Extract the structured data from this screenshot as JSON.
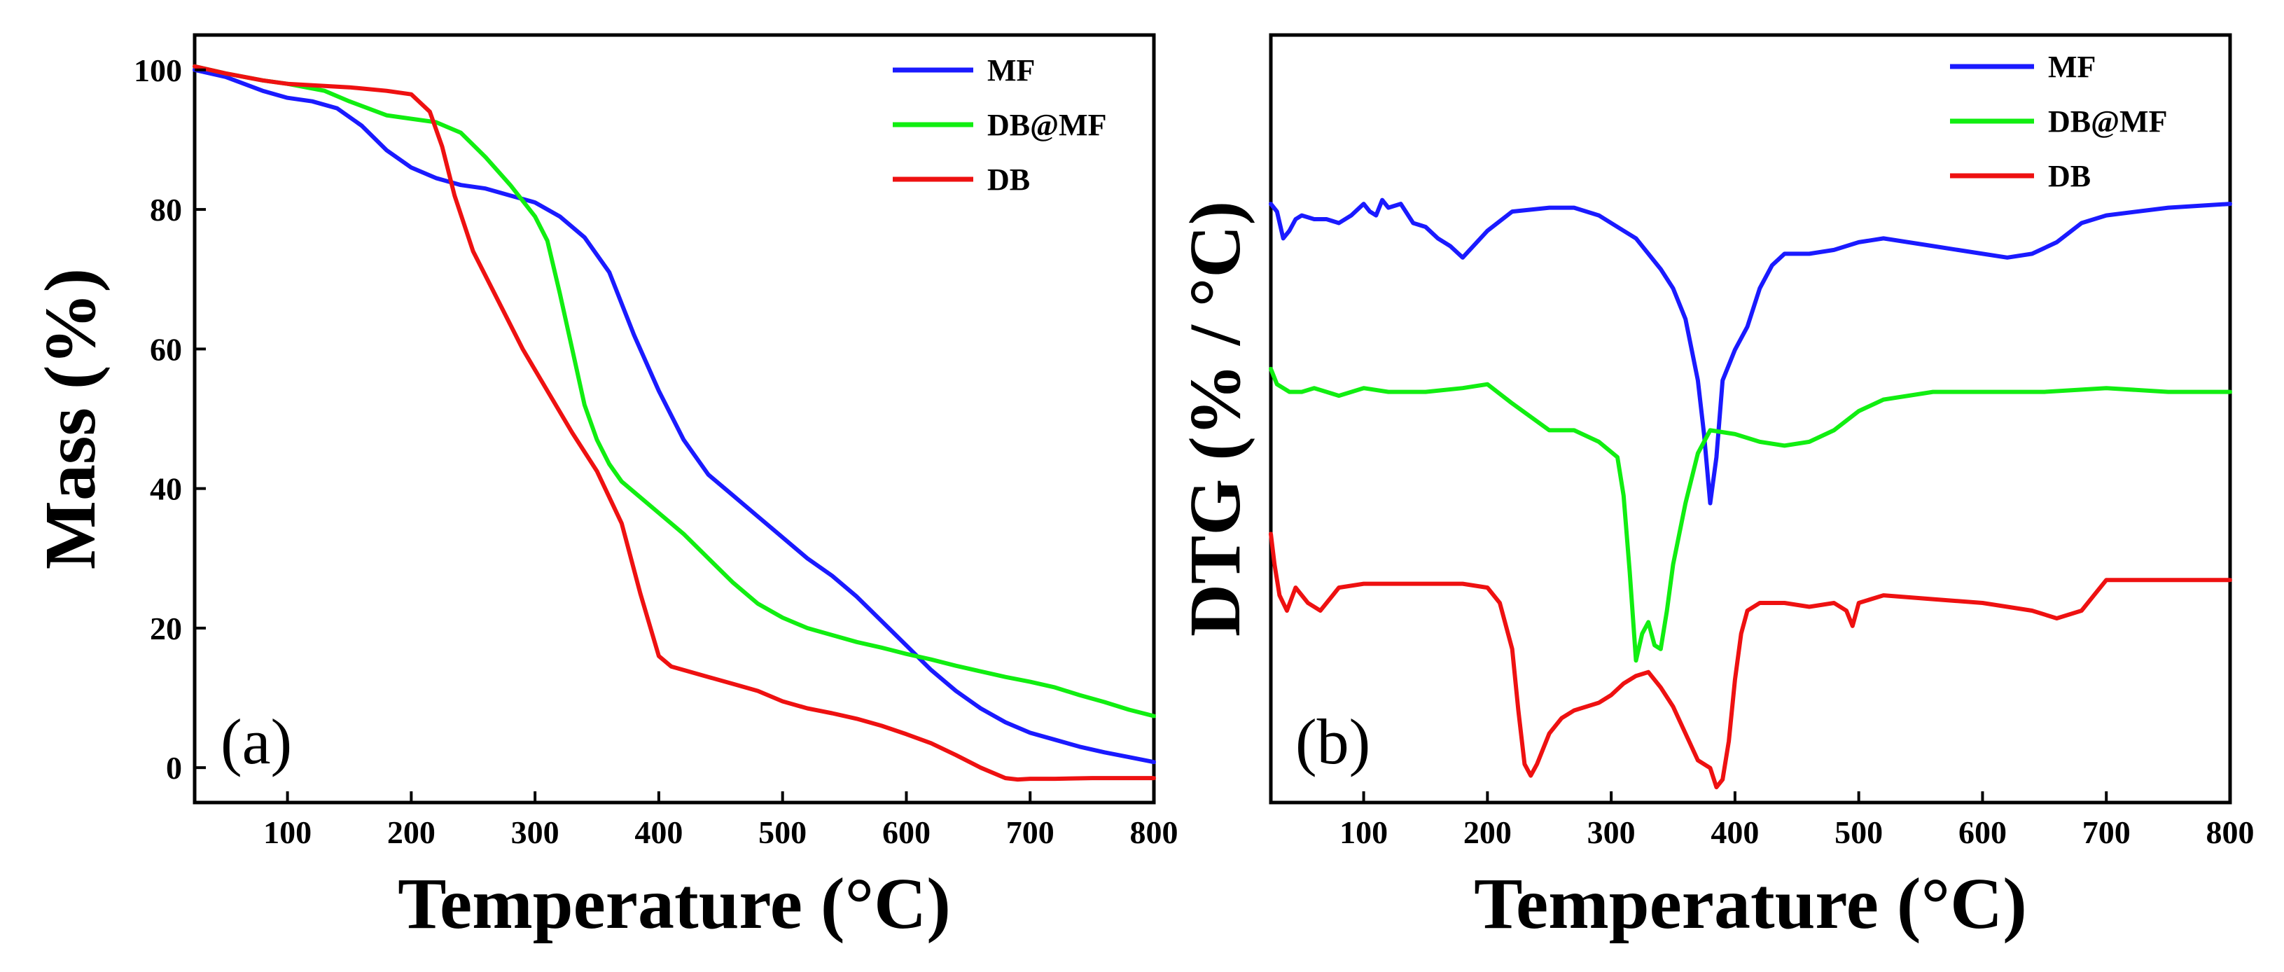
{
  "chart_data": [
    {
      "type": "line",
      "panel_label": "(a)",
      "xlabel": "Temperature (°C)",
      "ylabel": "Mass (%)",
      "xlim": [
        25,
        800
      ],
      "ylim": [
        -5,
        105
      ],
      "xticks": [
        100,
        200,
        300,
        400,
        500,
        600,
        700,
        800
      ],
      "yticks": [
        0,
        20,
        40,
        60,
        80,
        100
      ],
      "legend_position": "top-right",
      "series": [
        {
          "name": "MF",
          "color": "#1a1aff",
          "x": [
            25,
            50,
            80,
            100,
            120,
            140,
            160,
            180,
            200,
            220,
            240,
            260,
            280,
            300,
            320,
            340,
            360,
            380,
            400,
            420,
            440,
            460,
            480,
            500,
            520,
            540,
            560,
            580,
            600,
            620,
            640,
            660,
            680,
            700,
            720,
            740,
            760,
            780,
            800
          ],
          "y": [
            100,
            99,
            97,
            96,
            95.5,
            94.5,
            92,
            88.5,
            86,
            84.5,
            83.5,
            83,
            82,
            81,
            79,
            76,
            71,
            62,
            54,
            47,
            42,
            39,
            36,
            33,
            30,
            27.5,
            24.5,
            21,
            17.5,
            14,
            11,
            8.5,
            6.5,
            5,
            4,
            3,
            2.2,
            1.5,
            0.8
          ]
        },
        {
          "name": "DB@MF",
          "color": "#11ee11",
          "x": [
            25,
            50,
            80,
            100,
            130,
            150,
            180,
            200,
            220,
            240,
            260,
            280,
            300,
            310,
            320,
            330,
            340,
            350,
            360,
            370,
            380,
            400,
            420,
            440,
            460,
            480,
            500,
            520,
            540,
            560,
            580,
            600,
            620,
            640,
            660,
            680,
            700,
            720,
            740,
            760,
            780,
            800
          ],
          "y": [
            100.5,
            99.5,
            98.5,
            98,
            97,
            95.5,
            93.5,
            93,
            92.5,
            91,
            87.5,
            83.5,
            79,
            75.5,
            68,
            60,
            52,
            47,
            43.5,
            41,
            39.5,
            36.5,
            33.5,
            30,
            26.5,
            23.5,
            21.5,
            20,
            19,
            18,
            17.2,
            16.3,
            15.5,
            14.6,
            13.8,
            13,
            12.3,
            11.5,
            10.4,
            9.4,
            8.3,
            7.4
          ]
        },
        {
          "name": "DB",
          "color": "#ee1111",
          "x": [
            25,
            50,
            80,
            100,
            150,
            180,
            200,
            215,
            225,
            235,
            250,
            270,
            290,
            310,
            330,
            350,
            370,
            385,
            400,
            410,
            420,
            440,
            460,
            480,
            500,
            520,
            540,
            560,
            580,
            600,
            620,
            640,
            660,
            680,
            690,
            700,
            720,
            750,
            800
          ],
          "y": [
            100.5,
            99.5,
            98.5,
            98,
            97.5,
            97,
            96.5,
            94,
            89,
            82,
            74,
            67,
            60,
            54,
            48,
            42.5,
            35,
            25,
            16,
            14.5,
            14,
            13,
            12,
            11,
            9.5,
            8.5,
            7.8,
            7,
            6,
            4.8,
            3.5,
            1.8,
            0,
            -1.5,
            -1.7,
            -1.6,
            -1.6,
            -1.5,
            -1.5
          ]
        }
      ]
    },
    {
      "type": "line",
      "panel_label": "(b)",
      "xlabel": "Temperature (°C)",
      "ylabel": "DTG (% / °C)",
      "xlim": [
        25,
        800
      ],
      "ylim": [
        0,
        100
      ],
      "xticks": [
        100,
        200,
        300,
        400,
        500,
        600,
        700,
        800
      ],
      "yticks": [],
      "legend_position": "top-right",
      "series": [
        {
          "name": "MF",
          "color": "#1a1aff",
          "x": [
            25,
            30,
            35,
            40,
            45,
            50,
            60,
            70,
            80,
            90,
            100,
            105,
            110,
            115,
            120,
            130,
            140,
            150,
            160,
            170,
            180,
            200,
            220,
            250,
            270,
            290,
            310,
            320,
            330,
            340,
            350,
            360,
            370,
            375,
            380,
            385,
            390,
            400,
            410,
            420,
            430,
            440,
            460,
            480,
            500,
            520,
            560,
            600,
            620,
            640,
            660,
            680,
            700,
            750,
            800
          ],
          "y": [
            78,
            77,
            73.5,
            74.5,
            76,
            76.5,
            76,
            76,
            75.5,
            76.5,
            78,
            77,
            76.5,
            78.5,
            77.5,
            78,
            75.5,
            75,
            73.5,
            72.5,
            71,
            74.5,
            77,
            77.5,
            77.5,
            76.5,
            74.5,
            73.5,
            71.5,
            69.5,
            67,
            63,
            55,
            48,
            39,
            45,
            55,
            59,
            62,
            67,
            70,
            71.5,
            71.5,
            72,
            73,
            73.5,
            72.5,
            71.5,
            71,
            71.5,
            73,
            75.5,
            76.5,
            77.5,
            78
          ]
        },
        {
          "name": "DB@MF",
          "color": "#11ee11",
          "x": [
            25,
            30,
            40,
            50,
            60,
            70,
            80,
            100,
            120,
            150,
            180,
            200,
            220,
            250,
            270,
            290,
            305,
            310,
            315,
            320,
            325,
            330,
            335,
            340,
            345,
            350,
            360,
            370,
            380,
            400,
            420,
            440,
            460,
            480,
            500,
            520,
            560,
            600,
            650,
            700,
            750,
            800
          ],
          "y": [
            56.5,
            54.5,
            53.5,
            53.5,
            54,
            53.5,
            53,
            54,
            53.5,
            53.5,
            54,
            54.5,
            52,
            48.5,
            48.5,
            47,
            45,
            40,
            30,
            18.5,
            22,
            23.5,
            20.5,
            20,
            25,
            31,
            39,
            45.5,
            48.5,
            48,
            47,
            46.5,
            47,
            48.5,
            51,
            52.5,
            53.5,
            53.5,
            53.5,
            54,
            53.5,
            53.5
          ]
        },
        {
          "name": "DB",
          "color": "#ee1111",
          "x": [
            25,
            28,
            32,
            38,
            45,
            55,
            65,
            75,
            80,
            100,
            150,
            180,
            200,
            210,
            220,
            225,
            230,
            235,
            240,
            245,
            250,
            260,
            270,
            280,
            290,
            300,
            310,
            320,
            330,
            340,
            350,
            360,
            370,
            380,
            385,
            390,
            395,
            400,
            405,
            410,
            420,
            440,
            460,
            480,
            490,
            495,
            500,
            520,
            560,
            600,
            640,
            660,
            670,
            680,
            690,
            700,
            750,
            800
          ],
          "y": [
            35,
            31,
            27,
            25,
            28,
            26,
            25,
            27,
            28,
            28.5,
            28.5,
            28.5,
            28,
            26,
            20,
            12,
            5,
            3.5,
            5,
            7,
            9,
            11,
            12,
            12.5,
            13,
            14,
            15.5,
            16.5,
            17,
            15,
            12.5,
            9,
            5.5,
            4.5,
            2,
            3,
            8,
            16,
            22,
            25,
            26,
            26,
            25.5,
            26,
            25,
            23,
            26,
            27,
            26.5,
            26,
            25,
            24,
            24.5,
            25,
            27,
            29,
            29,
            29
          ]
        }
      ]
    }
  ]
}
